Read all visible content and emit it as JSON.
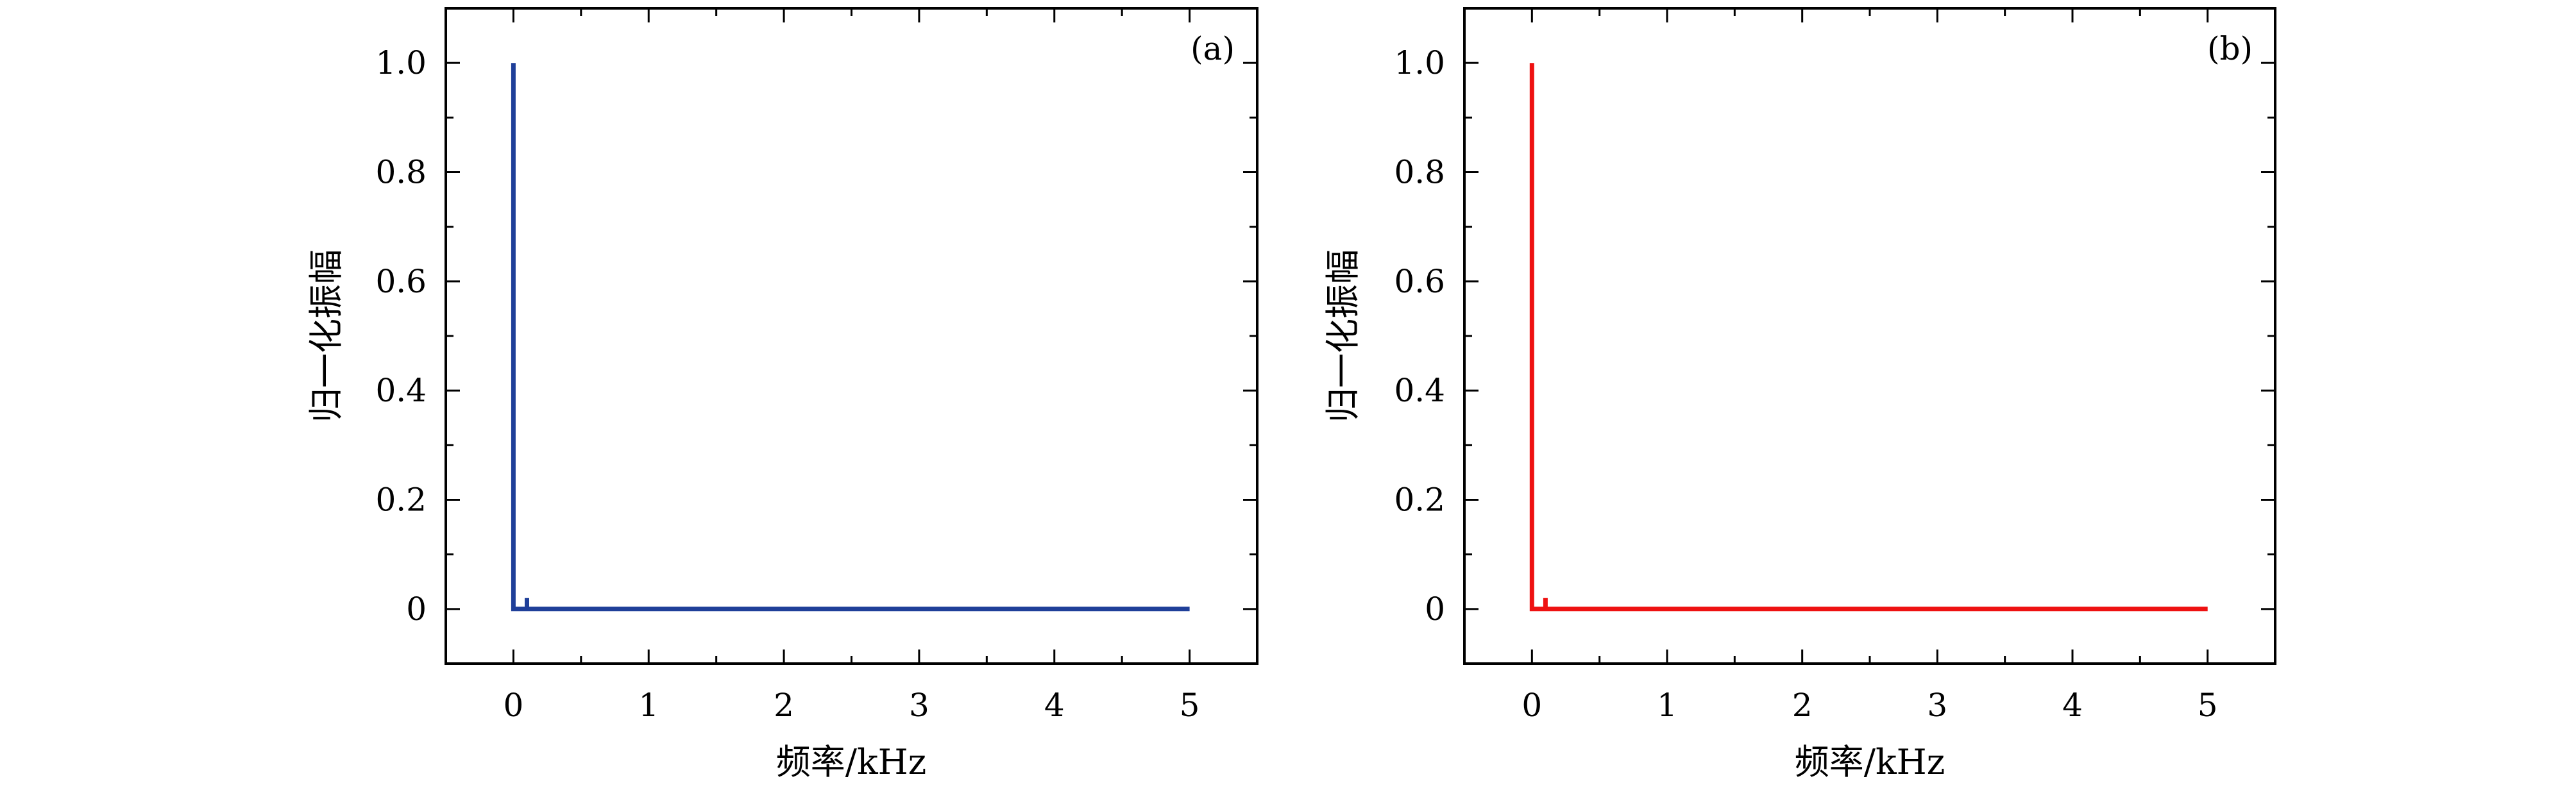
{
  "chart_data": [
    {
      "type": "line",
      "panel_label": "(a)",
      "xlabel": "频率/kHz",
      "ylabel": "归一化振幅",
      "xlim": [
        -0.5,
        5.5
      ],
      "ylim": [
        -0.1,
        1.1
      ],
      "x_ticks": [
        0,
        1,
        2,
        3,
        4,
        5
      ],
      "y_ticks": [
        0,
        0.2,
        0.4,
        0.6,
        0.8,
        1.0
      ],
      "x_tick_labels": [
        "0",
        "1",
        "2",
        "3",
        "4",
        "5"
      ],
      "y_tick_labels": [
        "0",
        "0.2",
        "0.4",
        "0.6",
        "0.8",
        "1.0"
      ],
      "grid": false,
      "color": "#1f3f99",
      "series": [
        {
          "x": [
            0,
            0,
            0,
            0.1,
            0.1,
            0.1,
            5.0
          ],
          "y": [
            1.0,
            0.38,
            0,
            0,
            0.02,
            0,
            0
          ]
        }
      ]
    },
    {
      "type": "line",
      "panel_label": "(b)",
      "xlabel": "频率/kHz",
      "ylabel": "归一化振幅",
      "xlim": [
        -0.5,
        5.5
      ],
      "ylim": [
        -0.1,
        1.1
      ],
      "x_ticks": [
        0,
        1,
        2,
        3,
        4,
        5
      ],
      "y_ticks": [
        0,
        0.2,
        0.4,
        0.6,
        0.8,
        1.0
      ],
      "x_tick_labels": [
        "0",
        "1",
        "2",
        "3",
        "4",
        "5"
      ],
      "y_tick_labels": [
        "0",
        "0.2",
        "0.4",
        "0.6",
        "0.8",
        "1.0"
      ],
      "grid": false,
      "color": "#ee1111",
      "series": [
        {
          "x": [
            0,
            0,
            0,
            0.1,
            0.1,
            0.1,
            5.0
          ],
          "y": [
            1.0,
            0.36,
            0,
            0,
            0.02,
            0,
            0
          ]
        }
      ]
    }
  ]
}
